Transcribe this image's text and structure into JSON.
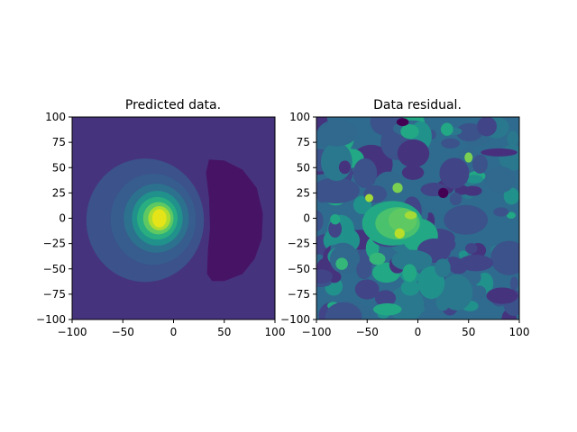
{
  "chart_data": [
    {
      "type": "contour",
      "title": "Predicted data.",
      "xlim": [
        -100,
        100
      ],
      "ylim": [
        -100,
        100
      ],
      "xticks": [
        -100,
        -50,
        0,
        50,
        100
      ],
      "yticks": [
        -100,
        -75,
        -50,
        -25,
        0,
        25,
        50,
        75,
        100
      ],
      "colormap": "viridis",
      "features": [
        {
          "kind": "peak",
          "center": [
            -15,
            0
          ],
          "note": "positive maximum"
        },
        {
          "kind": "trough",
          "center": [
            60,
            -2
          ],
          "note": "negative minimum"
        }
      ]
    },
    {
      "type": "contour",
      "title": "Data residual.",
      "xlim": [
        -100,
        100
      ],
      "ylim": [
        -100,
        100
      ],
      "xticks": [
        -100,
        -50,
        0,
        50,
        100
      ],
      "yticks": [
        -100,
        -75,
        -50,
        -25,
        0,
        25,
        50,
        75,
        100
      ],
      "colormap": "viridis"
    }
  ]
}
